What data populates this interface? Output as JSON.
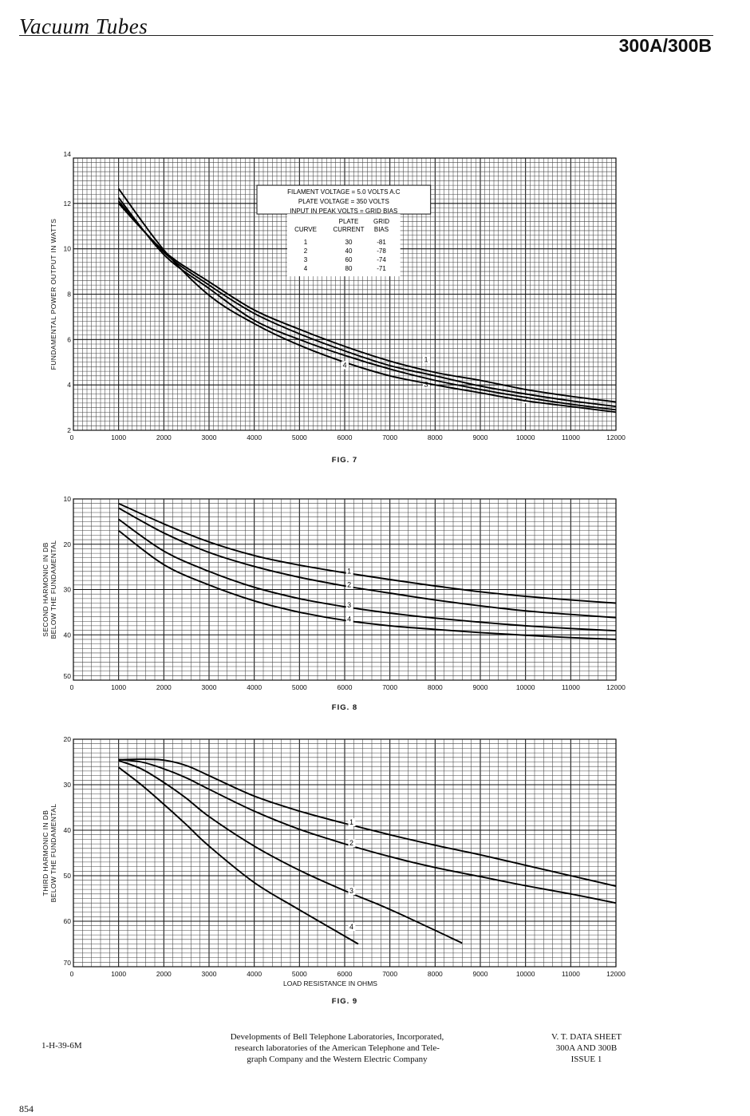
{
  "header": {
    "title": "Vacuum Tubes",
    "model": "300A/300B"
  },
  "chart_data": [
    {
      "type": "line",
      "id": "fig7",
      "caption": "FIG. 7",
      "ylabel": "FUNDAMENTAL POWER OUTPUT IN WATTS",
      "xlabel": "",
      "xlim": [
        0,
        12000
      ],
      "ylim": [
        2,
        14
      ],
      "x_ticks": [
        "0",
        "1000",
        "2000",
        "3000",
        "4000",
        "5000",
        "6000",
        "7000",
        "8000",
        "9000",
        "10000",
        "11000",
        "12000"
      ],
      "y_ticks": [
        "2",
        "4",
        "6",
        "8",
        "10",
        "12",
        "14"
      ],
      "grid": true,
      "legend_box": {
        "lines": [
          "FILAMENT VOLTAGE = 5.0 VOLTS A.C",
          "PLATE VOLTAGE = 350 VOLTS",
          "INPUT IN PEAK VOLTS = GRID BIAS"
        ],
        "col_headers": [
          [
            "",
            "CURVE"
          ],
          [
            "PLATE",
            "CURRENT"
          ],
          [
            "GRID",
            "BIAS"
          ]
        ],
        "rows": [
          [
            "1",
            "30",
            "-81"
          ],
          [
            "2",
            "40",
            "-78"
          ],
          [
            "3",
            "60",
            "-74"
          ],
          [
            "4",
            "80",
            "-71"
          ]
        ]
      },
      "series": [
        {
          "name": "1",
          "x": [
            1000,
            2000,
            3000,
            4000,
            5000,
            6000,
            7000,
            8000,
            9000,
            10000,
            11000,
            12000
          ],
          "y": [
            12.0,
            9.9,
            8.55,
            7.3,
            6.45,
            5.7,
            5.05,
            4.55,
            4.2,
            3.8,
            3.5,
            3.25
          ]
        },
        {
          "name": "2",
          "x": [
            1000,
            2000,
            3000,
            4000,
            5000,
            6000,
            7000,
            8000,
            9000,
            10000,
            11000,
            12000
          ],
          "y": [
            12.1,
            9.85,
            8.4,
            7.15,
            6.25,
            5.5,
            4.85,
            4.4,
            3.95,
            3.6,
            3.3,
            3.05
          ]
        },
        {
          "name": "3",
          "x": [
            1000,
            2000,
            3000,
            4000,
            5000,
            6000,
            7000,
            8000,
            9000,
            10000,
            11000,
            12000
          ],
          "y": [
            12.25,
            9.75,
            8.25,
            6.85,
            6.0,
            5.3,
            4.7,
            4.2,
            3.8,
            3.45,
            3.15,
            2.9
          ]
        },
        {
          "name": "4",
          "x": [
            1000,
            2000,
            3000,
            4000,
            5000,
            6000,
            7000,
            8000,
            9000,
            10000,
            11000,
            12000
          ],
          "y": [
            12.65,
            9.95,
            7.95,
            6.7,
            5.75,
            5.0,
            4.4,
            4.0,
            3.65,
            3.3,
            3.05,
            2.8
          ]
        }
      ]
    },
    {
      "type": "line",
      "id": "fig8",
      "caption": "FIG. 8",
      "ylabel": "SECOND HARMONIC IN DB BELOW THE FUNDAMENTAL",
      "xlabel": "",
      "xlim": [
        0,
        12000
      ],
      "ylim": [
        10,
        50
      ],
      "y_inverted": true,
      "x_ticks": [
        "0",
        "1000",
        "2000",
        "3000",
        "4000",
        "5000",
        "6000",
        "7000",
        "8000",
        "9000",
        "10000",
        "11000",
        "12000"
      ],
      "y_ticks": [
        "10",
        "20",
        "30",
        "40",
        "50"
      ],
      "grid": true,
      "series": [
        {
          "name": "1",
          "x": [
            1000,
            2000,
            3000,
            4000,
            5000,
            6000,
            7000,
            8000,
            9000,
            10000,
            11000,
            12000
          ],
          "y": [
            11.0,
            15.5,
            19.5,
            22.5,
            24.6,
            26.3,
            27.8,
            29.2,
            30.5,
            31.5,
            32.3,
            33.0
          ]
        },
        {
          "name": "2",
          "x": [
            1000,
            2000,
            3000,
            4000,
            5000,
            6000,
            7000,
            8000,
            9000,
            10000,
            11000,
            12000
          ],
          "y": [
            12.0,
            17.5,
            21.8,
            24.9,
            27.3,
            29.2,
            30.8,
            32.3,
            33.6,
            34.7,
            35.5,
            36.2
          ]
        },
        {
          "name": "3",
          "x": [
            1000,
            2000,
            3000,
            4000,
            5000,
            6000,
            7000,
            8000,
            9000,
            10000,
            11000,
            12000
          ],
          "y": [
            14.5,
            21.5,
            26.0,
            29.5,
            32.0,
            33.8,
            35.2,
            36.3,
            37.2,
            38.0,
            38.6,
            39.1
          ]
        },
        {
          "name": "4",
          "x": [
            1000,
            2000,
            3000,
            4000,
            5000,
            6000,
            7000,
            8000,
            9000,
            10000,
            11000,
            12000
          ],
          "y": [
            17.0,
            24.5,
            29.0,
            32.5,
            35.0,
            36.8,
            38.0,
            38.8,
            39.5,
            40.1,
            40.6,
            41.0
          ]
        }
      ]
    },
    {
      "type": "line",
      "id": "fig9",
      "caption": "FIG. 9",
      "ylabel": "THIRD HARMONIC IN DB BELOW THE FUNDAMENTAL",
      "xlabel": "LOAD RESISTANCE IN OHMS",
      "xlim": [
        0,
        12000
      ],
      "ylim": [
        20,
        70
      ],
      "y_inverted": true,
      "x_ticks": [
        "0",
        "1000",
        "2000",
        "3000",
        "4000",
        "5000",
        "6000",
        "7000",
        "8000",
        "9000",
        "10000",
        "11000",
        "12000"
      ],
      "y_ticks": [
        "20",
        "30",
        "40",
        "50",
        "60",
        "70"
      ],
      "grid": true,
      "series": [
        {
          "name": "1",
          "x": [
            1000,
            1500,
            2000,
            2500,
            3000,
            4000,
            5000,
            6000,
            7000,
            8000,
            9000,
            10000,
            11000,
            12000
          ],
          "y": [
            24.5,
            24.4,
            24.6,
            25.8,
            28.0,
            32.5,
            35.8,
            38.5,
            41.0,
            43.3,
            45.4,
            47.7,
            50.0,
            52.3
          ]
        },
        {
          "name": "2",
          "x": [
            1000,
            1500,
            2000,
            2500,
            3000,
            4000,
            5000,
            6000,
            7000,
            8000,
            9000,
            10000,
            11000,
            12000
          ],
          "y": [
            24.5,
            25.0,
            26.5,
            28.5,
            31.0,
            35.8,
            39.8,
            43.0,
            45.8,
            48.2,
            50.2,
            52.2,
            54.0,
            56.0
          ]
        },
        {
          "name": "3",
          "x": [
            1000,
            1500,
            2000,
            2500,
            3000,
            4000,
            5000,
            6000,
            7000,
            8600
          ],
          "y": [
            24.7,
            26.5,
            29.5,
            33.0,
            37.0,
            43.5,
            48.8,
            53.3,
            57.4,
            64.8
          ]
        },
        {
          "name": "4",
          "x": [
            1000,
            1500,
            2000,
            2500,
            3000,
            4000,
            5000,
            6300
          ],
          "y": [
            26.2,
            30.0,
            34.3,
            38.8,
            43.5,
            51.5,
            57.5,
            65.0
          ]
        }
      ]
    }
  ],
  "footer": {
    "code": "1-H-39-6M",
    "publisher_lines": [
      "Developments of Bell Telephone Laboratories, Incorporated,",
      "research laboratories of the American Telephone and Tele-",
      "graph Company and the Western Electric Company"
    ],
    "sheet_lines": [
      "V. T. DATA SHEET",
      "300A AND 300B",
      "ISSUE 1"
    ]
  },
  "page_number": "854"
}
